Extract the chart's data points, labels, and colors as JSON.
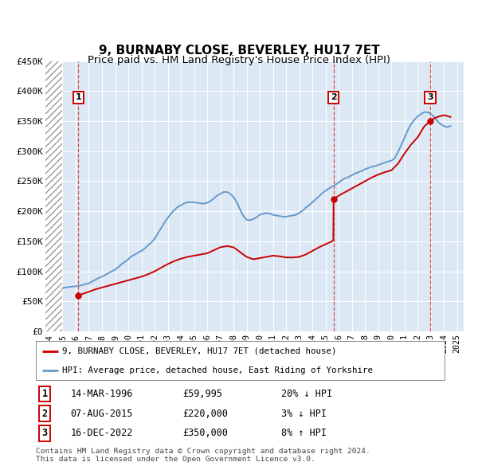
{
  "title": "9, BURNABY CLOSE, BEVERLEY, HU17 7ET",
  "subtitle": "Price paid vs. HM Land Registry's House Price Index (HPI)",
  "title_fontsize": 11,
  "subtitle_fontsize": 9.5,
  "background_color": "#dce9f5",
  "grid_color": "#ffffff",
  "ylim": [
    0,
    450000
  ],
  "yticks": [
    0,
    50000,
    100000,
    150000,
    200000,
    250000,
    300000,
    350000,
    400000,
    450000
  ],
  "ytick_labels": [
    "£0",
    "£50K",
    "£100K",
    "£150K",
    "£200K",
    "£250K",
    "£300K",
    "£350K",
    "£400K",
    "£450K"
  ],
  "xlim_start": 1993.7,
  "xlim_end": 2025.5,
  "xticks": [
    1994,
    1995,
    1996,
    1997,
    1998,
    1999,
    2000,
    2001,
    2002,
    2003,
    2004,
    2005,
    2006,
    2007,
    2008,
    2009,
    2010,
    2011,
    2012,
    2013,
    2014,
    2015,
    2016,
    2017,
    2018,
    2019,
    2020,
    2021,
    2022,
    2023,
    2024,
    2025
  ],
  "hpi_color": "#6699cc",
  "price_color": "#cc0000",
  "dashed_line_color": "#cc3333",
  "sales": [
    {
      "year": 1996.2,
      "price": 59995,
      "label": "1"
    },
    {
      "year": 2015.6,
      "price": 220000,
      "label": "2"
    },
    {
      "year": 2022.96,
      "price": 350000,
      "label": "3"
    }
  ],
  "hpi_data_x": [
    1995.0,
    1995.25,
    1995.5,
    1995.75,
    1996.0,
    1996.25,
    1996.5,
    1996.75,
    1997.0,
    1997.25,
    1997.5,
    1997.75,
    1998.0,
    1998.25,
    1998.5,
    1998.75,
    1999.0,
    1999.25,
    1999.5,
    1999.75,
    2000.0,
    2000.25,
    2000.5,
    2000.75,
    2001.0,
    2001.25,
    2001.5,
    2001.75,
    2002.0,
    2002.25,
    2002.5,
    2002.75,
    2003.0,
    2003.25,
    2003.5,
    2003.75,
    2004.0,
    2004.25,
    2004.5,
    2004.75,
    2005.0,
    2005.25,
    2005.5,
    2005.75,
    2006.0,
    2006.25,
    2006.5,
    2006.75,
    2007.0,
    2007.25,
    2007.5,
    2007.75,
    2008.0,
    2008.25,
    2008.5,
    2008.75,
    2009.0,
    2009.25,
    2009.5,
    2009.75,
    2010.0,
    2010.25,
    2010.5,
    2010.75,
    2011.0,
    2011.25,
    2011.5,
    2011.75,
    2012.0,
    2012.25,
    2012.5,
    2012.75,
    2013.0,
    2013.25,
    2013.5,
    2013.75,
    2014.0,
    2014.25,
    2014.5,
    2014.75,
    2015.0,
    2015.25,
    2015.5,
    2015.75,
    2016.0,
    2016.25,
    2016.5,
    2016.75,
    2017.0,
    2017.25,
    2017.5,
    2017.75,
    2018.0,
    2018.25,
    2018.5,
    2018.75,
    2019.0,
    2019.25,
    2019.5,
    2019.75,
    2020.0,
    2020.25,
    2020.5,
    2020.75,
    2021.0,
    2021.25,
    2021.5,
    2021.75,
    2022.0,
    2022.25,
    2022.5,
    2022.75,
    2023.0,
    2023.25,
    2023.5,
    2023.75,
    2024.0,
    2024.25,
    2024.5
  ],
  "hpi_data_y": [
    72000,
    73000,
    74000,
    74500,
    75000,
    76000,
    77000,
    78500,
    80000,
    83000,
    86000,
    89000,
    91000,
    94000,
    97000,
    100000,
    103000,
    107000,
    112000,
    116000,
    120000,
    125000,
    128000,
    131000,
    134000,
    138000,
    143000,
    148000,
    154000,
    163000,
    172000,
    181000,
    189000,
    196000,
    202000,
    207000,
    210000,
    213000,
    215000,
    215000,
    215000,
    214000,
    213000,
    213000,
    214000,
    217000,
    221000,
    226000,
    229000,
    232000,
    232000,
    229000,
    224000,
    215000,
    203000,
    192000,
    186000,
    185000,
    187000,
    190000,
    194000,
    196000,
    197000,
    196000,
    194000,
    193000,
    192000,
    191000,
    191000,
    192000,
    193000,
    194000,
    197000,
    201000,
    206000,
    210000,
    215000,
    220000,
    225000,
    230000,
    234000,
    238000,
    241000,
    244000,
    248000,
    252000,
    255000,
    257000,
    260000,
    263000,
    265000,
    267000,
    270000,
    272000,
    274000,
    275000,
    277000,
    279000,
    281000,
    283000,
    284000,
    288000,
    298000,
    310000,
    322000,
    335000,
    345000,
    352000,
    358000,
    362000,
    365000,
    365000,
    362000,
    357000,
    350000,
    345000,
    342000,
    340000,
    342000
  ],
  "price_line_x": [
    1996.2,
    1996.35,
    1996.6,
    1997.0,
    1997.5,
    1998.0,
    1998.5,
    1999.0,
    1999.5,
    2000.0,
    2000.5,
    2001.0,
    2001.5,
    2002.0,
    2002.5,
    2003.0,
    2003.5,
    2004.0,
    2004.5,
    2005.0,
    2005.5,
    2006.0,
    2006.5,
    2007.0,
    2007.5,
    2008.0,
    2008.5,
    2009.0,
    2009.5,
    2010.0,
    2010.5,
    2011.0,
    2011.5,
    2012.0,
    2012.5,
    2013.0,
    2013.5,
    2014.0,
    2014.5,
    2015.0,
    2015.5,
    2015.59,
    2015.61,
    2016.0,
    2016.5,
    2017.0,
    2017.5,
    2018.0,
    2018.5,
    2019.0,
    2019.5,
    2020.0,
    2020.5,
    2021.0,
    2021.5,
    2022.0,
    2022.5,
    2022.95,
    2023.0,
    2023.5,
    2024.0,
    2024.5
  ],
  "price_line_y": [
    59995,
    61000,
    63000,
    66000,
    70000,
    73000,
    76000,
    79000,
    82000,
    85000,
    88000,
    91000,
    95000,
    100000,
    106000,
    112000,
    117000,
    121000,
    124000,
    126000,
    128000,
    130000,
    135000,
    140000,
    142000,
    140000,
    132000,
    124000,
    120000,
    122000,
    124000,
    126000,
    125000,
    123000,
    123000,
    124000,
    128000,
    134000,
    140000,
    145000,
    150000,
    152000,
    220000,
    226000,
    232000,
    238000,
    244000,
    250000,
    256000,
    261000,
    265000,
    268000,
    279000,
    296000,
    311000,
    323000,
    341000,
    350000,
    352000,
    357000,
    360000,
    357000
  ],
  "legend_line1": "9, BURNABY CLOSE, BEVERLEY, HU17 7ET (detached house)",
  "legend_line2": "HPI: Average price, detached house, East Riding of Yorkshire",
  "table_rows": [
    {
      "num": "1",
      "date": "14-MAR-1996",
      "price": "£59,995",
      "hpi": "20% ↓ HPI"
    },
    {
      "num": "2",
      "date": "07-AUG-2015",
      "price": "£220,000",
      "hpi": "3% ↓ HPI"
    },
    {
      "num": "3",
      "date": "16-DEC-2022",
      "price": "£350,000",
      "hpi": "8% ↑ HPI"
    }
  ],
  "footnote": "Contains HM Land Registry data © Crown copyright and database right 2024.\nThis data is licensed under the Open Government Licence v3.0.",
  "hatch_end_year": 1995.0
}
